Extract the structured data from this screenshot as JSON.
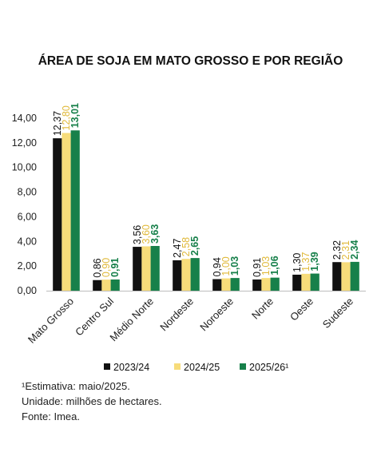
{
  "chart_data": {
    "type": "bar",
    "title": "ÁREA DE SOJA EM MATO GROSSO E POR REGIÃO",
    "xlabel": "",
    "ylabel": "",
    "ylim": [
      0,
      14
    ],
    "yticks": [
      "0,00",
      "2,00",
      "4,00",
      "6,00",
      "8,00",
      "10,00",
      "12,00",
      "14,00"
    ],
    "grid": false,
    "legend_position": "bottom",
    "categories": [
      "Mato Grosso",
      "Centro Sul",
      "Médio Norte",
      "Nordeste",
      "Noroeste",
      "Norte",
      "Oeste",
      "Sudeste"
    ],
    "series": [
      {
        "name": "2023/24",
        "color": "#111111",
        "label_color": "#111111",
        "bold": false,
        "values": [
          12.37,
          0.86,
          3.56,
          2.47,
          0.94,
          0.91,
          1.3,
          2.32
        ],
        "labels": [
          "12,37",
          "0,86",
          "3,56",
          "2,47",
          "0,94",
          "0,91",
          "1,30",
          "2,32"
        ]
      },
      {
        "name": "2024/25",
        "color": "#f7dc7a",
        "label_color": "#e0b93a",
        "bold": false,
        "values": [
          12.8,
          0.9,
          3.6,
          2.58,
          1.0,
          1.03,
          1.37,
          2.31
        ],
        "labels": [
          "12,80",
          "0,90",
          "3,60",
          "2,58",
          "1,00",
          "1,03",
          "1,37",
          "2,31"
        ]
      },
      {
        "name": "2025/26¹",
        "color": "#17804a",
        "label_color": "#17804a",
        "bold": true,
        "values": [
          13.01,
          0.91,
          3.63,
          2.65,
          1.03,
          1.06,
          1.39,
          2.34
        ],
        "labels": [
          "13,01",
          "0,91",
          "3,63",
          "2,65",
          "1,03",
          "1,06",
          "1,39",
          "2,34"
        ]
      }
    ]
  },
  "notes": {
    "estimate": "¹Estimativa: maio/2025.",
    "unit": "Unidade: milhões de hectares.",
    "source": "Fonte: Imea."
  }
}
